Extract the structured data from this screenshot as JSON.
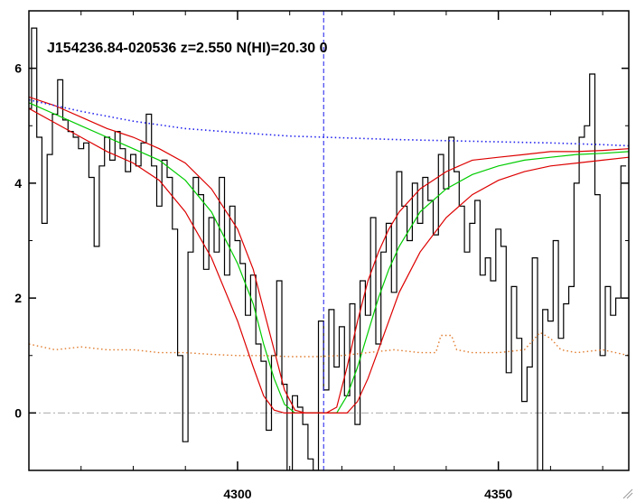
{
  "chart_data": {
    "type": "line",
    "title": "J154236.84-020536 z=2.550 N(HI)=20.30 0",
    "xlim": [
      4260,
      4375
    ],
    "ylim": [
      -1,
      7
    ],
    "xticks": [
      4300,
      4350
    ],
    "yticks": [
      0,
      2,
      4,
      6
    ],
    "xlabel": "",
    "ylabel": "",
    "grid": false,
    "marker_x": 4316.5,
    "zero_line": 0,
    "colors": {
      "flux": "#000000",
      "model": "#00cc00",
      "model_bounds": "#dd0000",
      "continuum": "#2222ee",
      "error": "#e07a2a",
      "zero": "#aaaaaa",
      "marker": "#1a1aee"
    },
    "series": [
      {
        "role": "flux",
        "style": "step",
        "x": [
          4260,
          4261,
          4262,
          4263,
          4264,
          4265,
          4266,
          4267,
          4268,
          4269,
          4270,
          4271,
          4272,
          4273,
          4274,
          4275,
          4276,
          4277,
          4278,
          4279,
          4280,
          4281,
          4282,
          4283,
          4284,
          4285,
          4286,
          4287,
          4288,
          4289,
          4290,
          4291,
          4292,
          4293,
          4294,
          4295,
          4296,
          4297,
          4298,
          4299,
          4300,
          4301,
          4302,
          4303,
          4304,
          4305,
          4306,
          4307,
          4308,
          4309,
          4310,
          4311,
          4312,
          4313,
          4314,
          4315,
          4316,
          4317,
          4318,
          4319,
          4320,
          4321,
          4322,
          4323,
          4324,
          4325,
          4326,
          4327,
          4328,
          4329,
          4330,
          4331,
          4332,
          4333,
          4334,
          4335,
          4336,
          4337,
          4338,
          4339,
          4340,
          4341,
          4342,
          4343,
          4344,
          4345,
          4346,
          4347,
          4348,
          4349,
          4350,
          4351,
          4352,
          4353,
          4354,
          4355,
          4356,
          4357,
          4358,
          4359,
          4360,
          4361,
          4362,
          4363,
          4364,
          4365,
          4366,
          4367,
          4368,
          4369,
          4370,
          4371,
          4372,
          4373,
          4374
        ],
        "y": [
          5.3,
          6.7,
          4.8,
          3.3,
          4.5,
          5.2,
          5.8,
          5.1,
          4.9,
          4.8,
          4.6,
          4.7,
          4.1,
          2.9,
          4.3,
          4.8,
          4.4,
          4.9,
          4.6,
          4.2,
          4.5,
          4.3,
          4.7,
          5.2,
          4.3,
          3.6,
          4.4,
          4.1,
          3.2,
          1.0,
          -0.5,
          2.8,
          4.1,
          3.8,
          2.5,
          3.4,
          2.8,
          4.1,
          2.4,
          3.6,
          3.0,
          2.6,
          1.7,
          2.4,
          1.2,
          0.9,
          -0.3,
          1.0,
          2.3,
          0.5,
          -1.5,
          0.3,
          0.1,
          -0.2,
          -0.8,
          -1.0,
          1.6,
          0.4,
          1.8,
          0.8,
          1.5,
          0.3,
          1.9,
          -0.2,
          2.3,
          1.7,
          3.4,
          1.2,
          2.8,
          3.3,
          2.1,
          4.2,
          3.6,
          3.0,
          4.0,
          3.3,
          4.1,
          3.7,
          3.1,
          4.5,
          3.9,
          4.8,
          4.2,
          3.6,
          2.8,
          3.3,
          3.7,
          2.4,
          2.7,
          2.3,
          3.2,
          2.9,
          0.7,
          2.2,
          1.3,
          0.2,
          0.8,
          2.7,
          -1.2,
          1.8,
          1.6,
          3.0,
          1.3,
          1.9,
          2.2,
          4.0,
          4.8,
          5.0,
          5.9,
          3.8,
          1.0,
          2.2,
          1.7,
          2.0,
          4.3
        ]
      },
      {
        "role": "model",
        "style": "line",
        "x": [
          4260,
          4265,
          4270,
          4275,
          4280,
          4285,
          4290,
          4295,
          4300,
          4303,
          4305,
          4307,
          4309,
          4311,
          4313,
          4315,
          4317,
          4319,
          4321,
          4323,
          4325,
          4327,
          4329,
          4331,
          4335,
          4340,
          4345,
          4350,
          4355,
          4360,
          4365,
          4370,
          4375
        ],
        "y": [
          5.4,
          5.2,
          5.0,
          4.8,
          4.6,
          4.4,
          4.05,
          3.5,
          2.6,
          1.9,
          1.2,
          0.6,
          0.15,
          0.0,
          0.0,
          0.0,
          0.0,
          0.0,
          0.3,
          0.8,
          1.4,
          2.0,
          2.5,
          2.9,
          3.5,
          3.9,
          4.15,
          4.3,
          4.4,
          4.45,
          4.5,
          4.52,
          4.55
        ]
      },
      {
        "role": "model-upper",
        "style": "line",
        "x": [
          4260,
          4265,
          4270,
          4275,
          4280,
          4285,
          4290,
          4295,
          4300,
          4303,
          4305,
          4307,
          4309,
          4311,
          4313,
          4315,
          4317,
          4319,
          4321,
          4323,
          4325,
          4327,
          4329,
          4331,
          4335,
          4340,
          4345,
          4350,
          4355,
          4360,
          4365,
          4370,
          4375
        ],
        "y": [
          5.5,
          5.35,
          5.15,
          4.95,
          4.8,
          4.6,
          4.35,
          3.9,
          3.2,
          2.5,
          1.8,
          1.1,
          0.4,
          0.05,
          0.0,
          0.0,
          0.0,
          0.1,
          0.8,
          1.6,
          2.3,
          2.8,
          3.2,
          3.5,
          3.9,
          4.2,
          4.4,
          4.45,
          4.5,
          4.55,
          4.55,
          4.57,
          4.6
        ]
      },
      {
        "role": "model-lower",
        "style": "line",
        "x": [
          4260,
          4265,
          4270,
          4275,
          4280,
          4285,
          4290,
          4295,
          4300,
          4303,
          4305,
          4307,
          4309,
          4311,
          4313,
          4315,
          4317,
          4319,
          4321,
          4323,
          4325,
          4327,
          4329,
          4331,
          4335,
          4340,
          4345,
          4350,
          4355,
          4360,
          4365,
          4370,
          4375
        ],
        "y": [
          5.3,
          5.05,
          4.8,
          4.55,
          4.35,
          4.05,
          3.5,
          2.7,
          1.6,
          0.8,
          0.3,
          0.05,
          0.0,
          0.0,
          0.0,
          0.0,
          0.0,
          0.0,
          0.0,
          0.2,
          0.6,
          1.1,
          1.6,
          2.1,
          2.8,
          3.4,
          3.8,
          4.05,
          4.2,
          4.3,
          4.35,
          4.4,
          4.45
        ]
      },
      {
        "role": "continuum",
        "style": "dotted",
        "x": [
          4260,
          4270,
          4280,
          4290,
          4300,
          4310,
          4320,
          4330,
          4340,
          4350,
          4360,
          4370,
          4375
        ],
        "y": [
          5.45,
          5.25,
          5.08,
          4.95,
          4.88,
          4.82,
          4.79,
          4.76,
          4.74,
          4.72,
          4.7,
          4.67,
          4.65
        ]
      },
      {
        "role": "error",
        "style": "dotted",
        "x": [
          4260,
          4265,
          4270,
          4275,
          4280,
          4285,
          4290,
          4295,
          4300,
          4305,
          4310,
          4315,
          4320,
          4325,
          4330,
          4335,
          4338,
          4339,
          4341,
          4342,
          4345,
          4350,
          4355,
          4358,
          4360,
          4362,
          4365,
          4370,
          4375
        ],
        "y": [
          1.2,
          1.1,
          1.15,
          1.1,
          1.1,
          1.05,
          1.05,
          1.02,
          1.0,
          1.0,
          0.98,
          0.98,
          1.0,
          1.05,
          1.1,
          1.05,
          1.05,
          1.35,
          1.35,
          1.1,
          1.05,
          1.05,
          1.1,
          1.4,
          1.3,
          1.1,
          1.05,
          1.1,
          1.0
        ]
      }
    ]
  }
}
